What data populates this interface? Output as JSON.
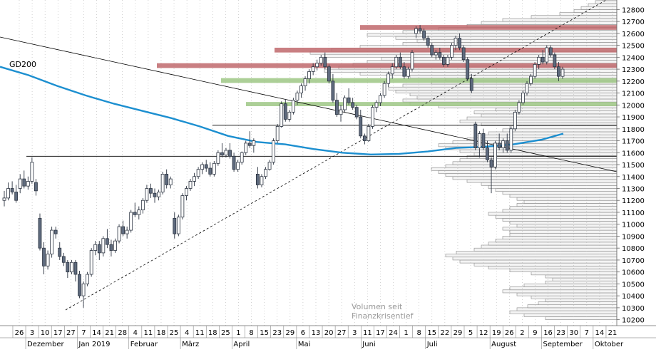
{
  "chart_data": {
    "type": "candlestick",
    "annotations": {
      "ma_label": "GD200",
      "volume_note_line1": "Volumen seit",
      "volume_note_line2": "Finanzkrisentief"
    },
    "y_axis": {
      "min": 10150,
      "max": 12880,
      "ticks": [
        10200,
        10300,
        10400,
        10500,
        10600,
        10700,
        10800,
        10900,
        11000,
        11100,
        11200,
        11300,
        11400,
        11500,
        11600,
        11700,
        11800,
        11900,
        12000,
        12100,
        12200,
        12300,
        12400,
        12500,
        12600,
        12700,
        12800
      ]
    },
    "x_axis": {
      "day_ticks": [
        "26",
        "3",
        "10",
        "17",
        "27",
        "7",
        "14",
        "21",
        "28",
        "4",
        "11",
        "18",
        "25",
        "4",
        "11",
        "18",
        "25",
        "1",
        "8",
        "15",
        "23",
        "29",
        "6",
        "13",
        "20",
        "27",
        "3",
        "11",
        "17",
        "24",
        "1",
        "8",
        "15",
        "22",
        "29",
        "5",
        "12",
        "19",
        "26",
        "2",
        "9",
        "16",
        "23",
        "30",
        "7",
        "14",
        "21"
      ],
      "month_labels": [
        "Dezember",
        "Jan 2019",
        "Februar",
        "März",
        "April",
        "Mai",
        "Juni",
        "Juli",
        "August",
        "September",
        "Oktober"
      ]
    },
    "volume_profile": {
      "price_step": 25,
      "start": 10200,
      "widths": [
        0.2,
        0.26,
        0.3,
        0.28,
        0.25,
        0.22,
        0.2,
        0.24,
        0.28,
        0.32,
        0.3,
        0.26,
        0.2,
        0.18,
        0.2,
        0.24,
        0.3,
        0.36,
        0.4,
        0.44,
        0.46,
        0.48,
        0.45,
        0.4,
        0.38,
        0.36,
        0.34,
        0.32,
        0.3,
        0.3,
        0.32,
        0.28,
        0.3,
        0.32,
        0.34,
        0.36,
        0.32,
        0.3,
        0.28,
        0.26,
        0.28,
        0.3,
        0.32,
        0.34,
        0.36,
        0.38,
        0.42,
        0.46,
        0.48,
        0.5,
        0.52,
        0.48,
        0.46,
        0.44,
        0.42,
        0.4,
        0.44,
        0.48,
        0.5,
        0.46,
        0.42,
        0.4,
        0.36,
        0.32,
        0.3,
        0.38,
        0.44,
        0.42,
        0.38,
        0.4,
        0.34,
        0.5,
        0.58,
        0.6,
        0.56,
        0.58,
        0.62,
        0.64,
        0.6,
        0.52,
        0.48,
        0.58,
        0.72,
        0.82,
        0.78,
        0.74,
        0.7,
        0.66,
        0.82,
        0.86,
        0.8,
        0.72,
        0.6,
        0.56,
        0.62,
        0.7,
        0.6,
        0.5,
        0.42,
        0.38,
        0.32,
        0.24,
        0.16,
        0.12,
        0.1,
        0.08,
        0.06,
        0.04,
        0.03
      ]
    },
    "highlight_zones": [
      {
        "low": 12630,
        "high": 12670,
        "kind": "resistance",
        "color": "#c0696c"
      },
      {
        "low": 12440,
        "high": 12480,
        "kind": "resistance",
        "color": "#c0696c"
      },
      {
        "low": 12310,
        "high": 12350,
        "kind": "resistance",
        "color": "#c0696c"
      },
      {
        "low": 12185,
        "high": 12225,
        "kind": "support",
        "color": "#9dc785"
      },
      {
        "low": 11990,
        "high": 12025,
        "kind": "support",
        "color": "#9dc785"
      }
    ],
    "horizontal_lines": [
      11570,
      11830
    ],
    "colors": {
      "ma": "#1c8fd0",
      "candle_up": "#ffffff",
      "candle_down": "#5f6b7e",
      "grid": "#b5b5b5",
      "volume_fill": "#f4f4f4",
      "volume_stroke": "#8a8a8a"
    },
    "series": [
      {
        "name": "GD200",
        "kind": "moving-average",
        "points": [
          [
            0,
            12320
          ],
          [
            40,
            12250
          ],
          [
            80,
            12160
          ],
          [
            120,
            12080
          ],
          [
            160,
            12010
          ],
          [
            200,
            11950
          ],
          [
            240,
            11890
          ],
          [
            280,
            11820
          ],
          [
            320,
            11740
          ],
          [
            360,
            11690
          ],
          [
            400,
            11670
          ],
          [
            440,
            11630
          ],
          [
            480,
            11600
          ],
          [
            520,
            11585
          ],
          [
            560,
            11590
          ],
          [
            600,
            11610
          ],
          [
            640,
            11640
          ],
          [
            680,
            11650
          ],
          [
            720,
            11670
          ],
          [
            760,
            11710
          ],
          [
            790,
            11760
          ]
        ]
      }
    ],
    "candles": [
      [
        11200,
        11280,
        11150,
        11220
      ],
      [
        11220,
        11350,
        11200,
        11300
      ],
      [
        11300,
        11360,
        11250,
        11270
      ],
      [
        11270,
        11330,
        11180,
        11200
      ],
      [
        11300,
        11420,
        11260,
        11380
      ],
      [
        11380,
        11450,
        11300,
        11320
      ],
      [
        11320,
        11400,
        11290,
        11360
      ],
      [
        11360,
        11560,
        11340,
        11520
      ],
      [
        11350,
        11380,
        11240,
        11280
      ],
      [
        11050,
        11090,
        10780,
        10800
      ],
      [
        10800,
        10850,
        10580,
        10650
      ],
      [
        10650,
        10780,
        10620,
        10750
      ],
      [
        10750,
        10980,
        10720,
        10950
      ],
      [
        10950,
        10980,
        10880,
        10920
      ],
      [
        10800,
        10850,
        10700,
        10730
      ],
      [
        10730,
        10760,
        10650,
        10680
      ],
      [
        10680,
        10700,
        10550,
        10600
      ],
      [
        10600,
        10700,
        10580,
        10680
      ],
      [
        10680,
        10700,
        10520,
        10580
      ],
      [
        10580,
        10610,
        10380,
        10400
      ],
      [
        10400,
        10520,
        10300,
        10500
      ],
      [
        10500,
        10600,
        10480,
        10580
      ],
      [
        10580,
        10800,
        10560,
        10780
      ],
      [
        10780,
        10860,
        10740,
        10830
      ],
      [
        10830,
        10860,
        10700,
        10760
      ],
      [
        10760,
        10900,
        10730,
        10880
      ],
      [
        10880,
        10960,
        10800,
        10830
      ],
      [
        10830,
        10870,
        10730,
        10780
      ],
      [
        10780,
        10880,
        10760,
        10860
      ],
      [
        10860,
        11000,
        10840,
        10980
      ],
      [
        10980,
        11030,
        10900,
        10920
      ],
      [
        10920,
        10980,
        10880,
        10950
      ],
      [
        10950,
        11120,
        10930,
        11100
      ],
      [
        11100,
        11180,
        11060,
        11080
      ],
      [
        11080,
        11150,
        11040,
        11120
      ],
      [
        11120,
        11220,
        11090,
        11200
      ],
      [
        11200,
        11330,
        11180,
        11300
      ],
      [
        11300,
        11340,
        11220,
        11260
      ],
      [
        11260,
        11300,
        11180,
        11230
      ],
      [
        11230,
        11290,
        11200,
        11270
      ],
      [
        11270,
        11440,
        11250,
        11420
      ],
      [
        11420,
        11460,
        11300,
        11330
      ],
      [
        11330,
        11400,
        11300,
        11380
      ],
      [
        11050,
        11100,
        10880,
        10920
      ],
      [
        10920,
        11080,
        10900,
        11060
      ],
      [
        11060,
        11260,
        11040,
        11240
      ],
      [
        11240,
        11320,
        11200,
        11300
      ],
      [
        11300,
        11380,
        11280,
        11360
      ],
      [
        11360,
        11430,
        11320,
        11400
      ],
      [
        11400,
        11480,
        11380,
        11460
      ],
      [
        11460,
        11520,
        11420,
        11500
      ],
      [
        11500,
        11540,
        11440,
        11470
      ],
      [
        11470,
        11520,
        11400,
        11420
      ],
      [
        11420,
        11530,
        11400,
        11510
      ],
      [
        11510,
        11620,
        11490,
        11600
      ],
      [
        11600,
        11680,
        11560,
        11580
      ],
      [
        11580,
        11640,
        11560,
        11620
      ],
      [
        11620,
        11680,
        11550,
        11570
      ],
      [
        11570,
        11600,
        11440,
        11460
      ],
      [
        11460,
        11540,
        11440,
        11520
      ],
      [
        11520,
        11610,
        11500,
        11600
      ],
      [
        11600,
        11700,
        11580,
        11680
      ],
      [
        11680,
        11780,
        11640,
        11660
      ],
      [
        11660,
        11720,
        11600,
        11700
      ],
      [
        11420,
        11480,
        11300,
        11330
      ],
      [
        11330,
        11420,
        11310,
        11400
      ],
      [
        11400,
        11480,
        11380,
        11460
      ],
      [
        11460,
        11540,
        11450,
        11520
      ],
      [
        11520,
        11720,
        11500,
        11700
      ],
      [
        11700,
        11840,
        11680,
        11820
      ],
      [
        11820,
        12030,
        11810,
        12010
      ],
      [
        12010,
        12050,
        11860,
        11880
      ],
      [
        11880,
        11960,
        11860,
        11940
      ],
      [
        11940,
        12060,
        11920,
        12040
      ],
      [
        12040,
        12120,
        12000,
        12100
      ],
      [
        12100,
        12180,
        12060,
        12160
      ],
      [
        12160,
        12240,
        12120,
        12220
      ],
      [
        12220,
        12300,
        12180,
        12280
      ],
      [
        12280,
        12350,
        12250,
        12320
      ],
      [
        12320,
        12380,
        12290,
        12350
      ],
      [
        12350,
        12420,
        12330,
        12400
      ],
      [
        12400,
        12440,
        12300,
        12320
      ],
      [
        12320,
        12340,
        12180,
        12200
      ],
      [
        12200,
        12260,
        12020,
        12040
      ],
      [
        12040,
        12100,
        11900,
        11920
      ],
      [
        11920,
        12000,
        11860,
        11960
      ],
      [
        11960,
        12080,
        11940,
        12060
      ],
      [
        12060,
        12140,
        12000,
        12020
      ],
      [
        12020,
        12060,
        11960,
        11980
      ],
      [
        11980,
        12000,
        11880,
        11900
      ],
      [
        11900,
        11960,
        11720,
        11740
      ],
      [
        11740,
        11760,
        11670,
        11700
      ],
      [
        11700,
        11840,
        11690,
        11820
      ],
      [
        11820,
        12000,
        11800,
        11980
      ],
      [
        11980,
        12040,
        11940,
        12020
      ],
      [
        12020,
        12100,
        11990,
        12080
      ],
      [
        12080,
        12200,
        12060,
        12180
      ],
      [
        12180,
        12280,
        12150,
        12260
      ],
      [
        12260,
        12350,
        12220,
        12320
      ],
      [
        12320,
        12420,
        12300,
        12400
      ],
      [
        12400,
        12440,
        12300,
        12320
      ],
      [
        12320,
        12360,
        12220,
        12240
      ],
      [
        12240,
        12320,
        12220,
        12300
      ],
      [
        12300,
        12460,
        12280,
        12440
      ],
      [
        12600,
        12660,
        12560,
        12640
      ],
      [
        12640,
        12670,
        12600,
        12620
      ],
      [
        12620,
        12640,
        12540,
        12560
      ],
      [
        12560,
        12580,
        12480,
        12500
      ],
      [
        12500,
        12520,
        12400,
        12420
      ],
      [
        12420,
        12460,
        12380,
        12440
      ],
      [
        12440,
        12480,
        12380,
        12400
      ],
      [
        12400,
        12420,
        12320,
        12340
      ],
      [
        12340,
        12420,
        12320,
        12400
      ],
      [
        12400,
        12520,
        12380,
        12500
      ],
      [
        12500,
        12580,
        12460,
        12560
      ],
      [
        12560,
        12600,
        12460,
        12480
      ],
      [
        12480,
        12500,
        12360,
        12380
      ],
      [
        12380,
        12400,
        12200,
        12220
      ],
      [
        12220,
        12260,
        12100,
        12120
      ],
      [
        11840,
        11860,
        11620,
        11640
      ],
      [
        11640,
        11780,
        11560,
        11760
      ],
      [
        11760,
        11800,
        11620,
        11640
      ],
      [
        11640,
        11700,
        11520,
        11540
      ],
      [
        11540,
        11560,
        11260,
        11480
      ],
      [
        11480,
        11700,
        11460,
        11680
      ],
      [
        11680,
        11760,
        11620,
        11640
      ],
      [
        11640,
        11720,
        11600,
        11700
      ],
      [
        11700,
        11760,
        11600,
        11620
      ],
      [
        11620,
        11820,
        11600,
        11800
      ],
      [
        11800,
        11960,
        11780,
        11940
      ],
      [
        11940,
        12040,
        11920,
        12020
      ],
      [
        12020,
        12120,
        12000,
        12100
      ],
      [
        12100,
        12200,
        12080,
        12180
      ],
      [
        12180,
        12260,
        12160,
        12240
      ],
      [
        12240,
        12360,
        12220,
        12340
      ],
      [
        12340,
        12420,
        12300,
        12400
      ],
      [
        12400,
        12460,
        12340,
        12360
      ],
      [
        12360,
        12500,
        12340,
        12480
      ],
      [
        12480,
        12500,
        12400,
        12420
      ],
      [
        12420,
        12440,
        12300,
        12320
      ],
      [
        12320,
        12360,
        12200,
        12240
      ],
      [
        12240,
        12320,
        12220,
        12300
      ]
    ]
  }
}
